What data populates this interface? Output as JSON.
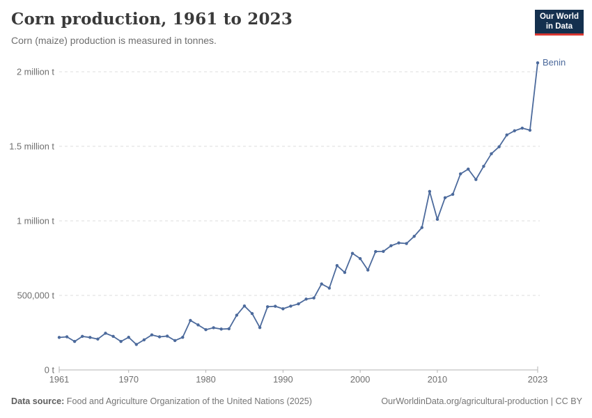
{
  "header": {
    "title": "Corn production, 1961 to 2023",
    "subtitle": "Corn (maize) production is measured in tonnes."
  },
  "logo": {
    "line1": "Our World",
    "line2": "in Data",
    "bg_color": "#14304e",
    "accent_color": "#d83731"
  },
  "chart_data": {
    "type": "line",
    "title": "Corn production, 1961 to 2023",
    "xlabel": "",
    "ylabel": "",
    "xlim": [
      1961,
      2023
    ],
    "ylim": [
      0,
      2000000
    ],
    "grid": "dashed-horizontal",
    "legend_position": "end-of-line-label",
    "x_ticks": [
      {
        "value": 1961,
        "label": "1961"
      },
      {
        "value": 1970,
        "label": "1970"
      },
      {
        "value": 1980,
        "label": "1980"
      },
      {
        "value": 1990,
        "label": "1990"
      },
      {
        "value": 2000,
        "label": "2000"
      },
      {
        "value": 2010,
        "label": "2010"
      },
      {
        "value": 2023,
        "label": "2023"
      }
    ],
    "y_ticks": [
      {
        "value": 0,
        "label": "0 t"
      },
      {
        "value": 500000,
        "label": "500,000 t"
      },
      {
        "value": 1000000,
        "label": "1 million t"
      },
      {
        "value": 1500000,
        "label": "1.5 million t"
      },
      {
        "value": 2000000,
        "label": "2 million t"
      }
    ],
    "series": [
      {
        "name": "Benin",
        "color": "#4c6a9c",
        "x": [
          1961,
          1962,
          1963,
          1964,
          1965,
          1966,
          1967,
          1968,
          1969,
          1970,
          1971,
          1972,
          1973,
          1974,
          1975,
          1976,
          1977,
          1978,
          1979,
          1980,
          1981,
          1982,
          1983,
          1984,
          1985,
          1986,
          1987,
          1988,
          1989,
          1990,
          1991,
          1992,
          1993,
          1994,
          1995,
          1996,
          1997,
          1998,
          1999,
          2000,
          2001,
          2002,
          2003,
          2004,
          2005,
          2006,
          2007,
          2008,
          2009,
          2010,
          2011,
          2012,
          2013,
          2014,
          2015,
          2016,
          2017,
          2018,
          2019,
          2020,
          2021,
          2022,
          2023
        ],
        "values": [
          218000,
          222000,
          191000,
          225000,
          218000,
          207000,
          246000,
          225000,
          191000,
          219000,
          171000,
          202000,
          235000,
          222000,
          227000,
          197000,
          219000,
          332000,
          302000,
          270000,
          283000,
          274000,
          276000,
          367000,
          429000,
          378000,
          284000,
          424000,
          427000,
          410000,
          428000,
          443000,
          475000,
          483000,
          577000,
          549000,
          700000,
          654000,
          782000,
          747000,
          670000,
          794000,
          795000,
          833000,
          852000,
          848000,
          896000,
          955000,
          1197000,
          1010000,
          1155000,
          1178000,
          1315000,
          1347000,
          1277000,
          1366000,
          1450000,
          1497000,
          1576000,
          1604000,
          1622000,
          1608000,
          2060000
        ]
      }
    ]
  },
  "footer": {
    "source_label": "Data source:",
    "source_text": " Food and Agriculture Organization of the United Nations (2025)",
    "citation": "OurWorldinData.org/agricultural-production | CC BY"
  }
}
